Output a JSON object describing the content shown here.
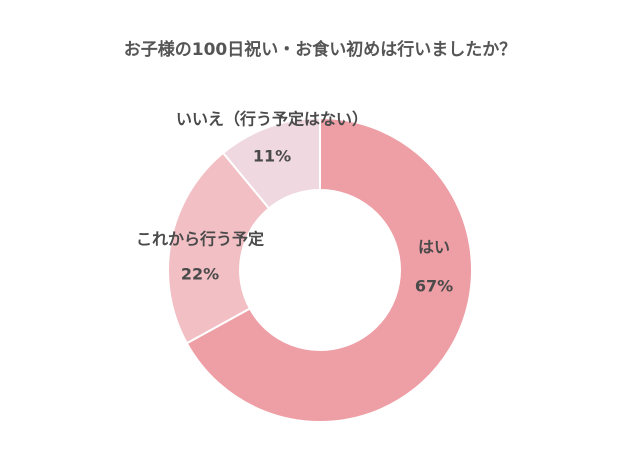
{
  "chart_data": {
    "type": "donut",
    "title": "お子様の100日祝い・お食い初めは行いましたか？",
    "categories": [
      "はい",
      "これから行う予定",
      "いいえ（行う予定はない）"
    ],
    "values": [
      67,
      22,
      11
    ],
    "value_labels": [
      "67%",
      "22%",
      "11%"
    ],
    "colors": [
      "#ee9ea5",
      "#f2bfc4",
      "#f0d8e0"
    ]
  }
}
